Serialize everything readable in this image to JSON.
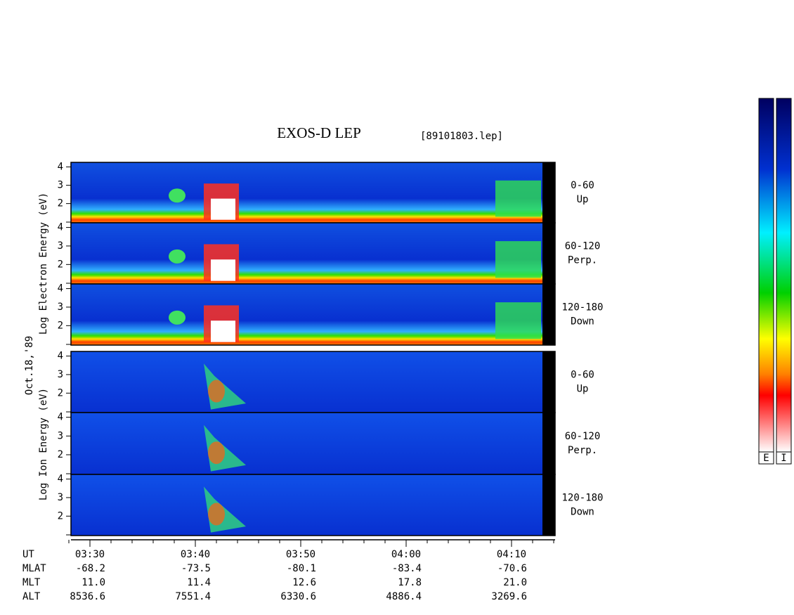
{
  "title": "EXOS-D LEP",
  "file": "[89101803.lep]",
  "date": "Oct.18,'89",
  "electron_axis_label": "Log  Electron  Energy (eV)",
  "ion_axis_label": "Log  Ion  Energy (eV)",
  "ylim": [
    0.95,
    4.25
  ],
  "yticks": [
    2,
    3,
    4
  ],
  "electron_panels": [
    {
      "label": "0-60",
      "sublabel": "Up"
    },
    {
      "label": "60-120",
      "sublabel": "Perp."
    },
    {
      "label": "120-180",
      "sublabel": "Down"
    }
  ],
  "ion_panels": [
    {
      "label": "0-60",
      "sublabel": "Up"
    },
    {
      "label": "60-120",
      "sublabel": "Perp."
    },
    {
      "label": "120-180",
      "sublabel": "Down"
    }
  ],
  "ephemeris": {
    "row_labels": [
      "UT",
      "MLAT",
      "MLT",
      "ALT"
    ],
    "columns": [
      [
        "03:30",
        "-68.2",
        "11.0",
        "8536.6"
      ],
      [
        "03:40",
        "-73.5",
        "11.4",
        "7551.4"
      ],
      [
        "03:50",
        "-80.1",
        "12.6",
        "6330.6"
      ],
      [
        "04:00",
        "-83.4",
        "17.8",
        "4886.4"
      ],
      [
        "04:10",
        "-70.6",
        "21.0",
        "3269.6"
      ]
    ]
  },
  "colorbar_labels": [
    "E",
    "I"
  ]
}
